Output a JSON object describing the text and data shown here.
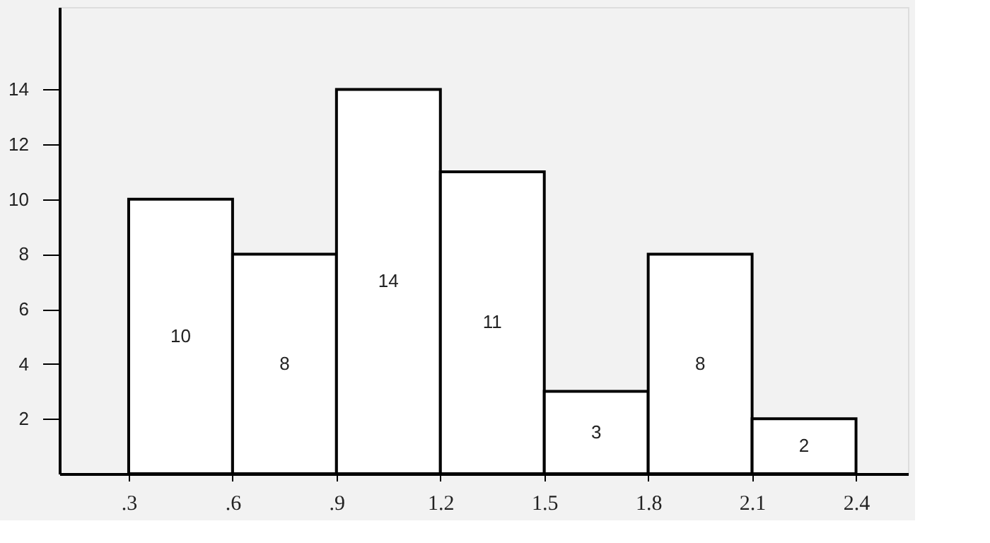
{
  "chart_data": {
    "type": "histogram",
    "bins": [
      0.3,
      0.6,
      0.9,
      1.2,
      1.5,
      1.8,
      2.1,
      2.4
    ],
    "values": [
      10,
      8,
      14,
      11,
      3,
      8,
      2
    ],
    "color": "#ffffff",
    "data_labels": true,
    "xlim": [
      0.1,
      2.55
    ],
    "xticks": [
      {
        "value": 0.3,
        "label": ".3"
      },
      {
        "value": 0.6,
        "label": ".6"
      },
      {
        "value": 0.9,
        "label": ".9"
      },
      1.2,
      1.5,
      1.8,
      2.1,
      2.4
    ],
    "ylim": [
      0,
      17
    ],
    "yticks": [
      2,
      4,
      6,
      8,
      10,
      12,
      14
    ],
    "grid": false
  }
}
